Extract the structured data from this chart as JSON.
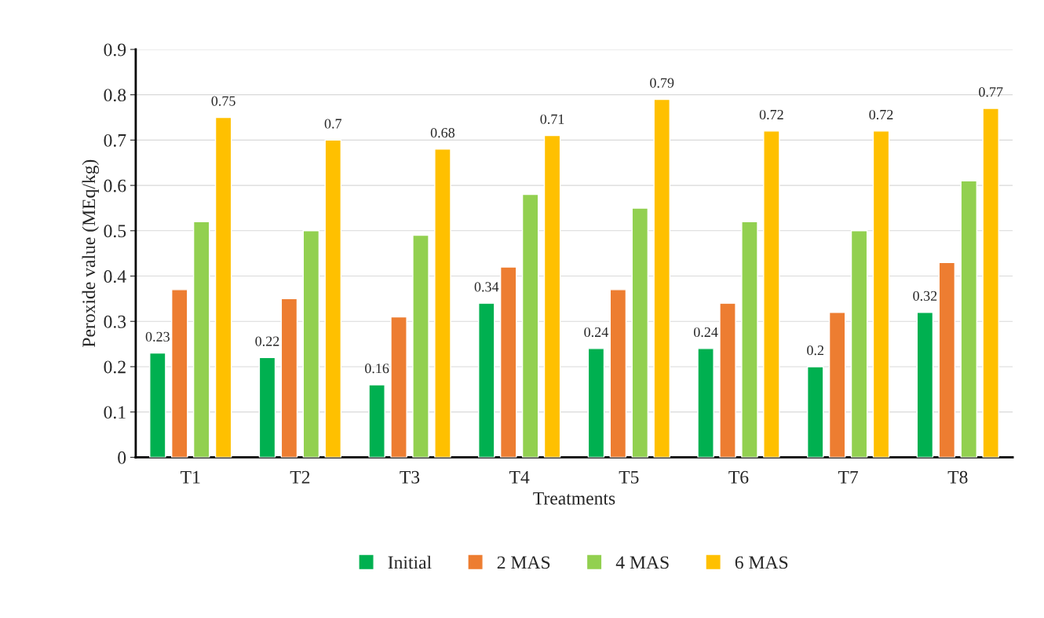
{
  "chart_data": {
    "type": "bar",
    "xlabel": "Treatments",
    "ylabel": "Peroxide value (MEq/kg)",
    "categories": [
      "T1",
      "T2",
      "T3",
      "T4",
      "T5",
      "T6",
      "T7",
      "T8"
    ],
    "series": [
      {
        "name": "Initial",
        "color": "#00b050",
        "values": [
          0.23,
          0.22,
          0.16,
          0.34,
          0.24,
          0.24,
          0.2,
          0.32
        ],
        "value_labels": [
          "0.23",
          "0.22",
          "0.16",
          "0.34",
          "0.24",
          "0.24",
          "0.2",
          "0.32"
        ]
      },
      {
        "name": "2 MAS",
        "color": "#ed7d31",
        "values": [
          0.37,
          0.35,
          0.31,
          0.42,
          0.37,
          0.34,
          0.32,
          0.43
        ]
      },
      {
        "name": "4 MAS",
        "color": "#92d050",
        "values": [
          0.52,
          0.5,
          0.49,
          0.58,
          0.55,
          0.52,
          0.5,
          0.61
        ]
      },
      {
        "name": "6 MAS",
        "color": "#ffc000",
        "values": [
          0.75,
          0.7,
          0.68,
          0.71,
          0.79,
          0.72,
          0.72,
          0.77
        ],
        "value_labels": [
          "0.75",
          "0.7",
          "0.68",
          "0.71",
          "0.79",
          "0.72",
          "0.72",
          "0.77"
        ]
      }
    ],
    "ylim": [
      0,
      0.9
    ],
    "yticks": [
      0,
      0.1,
      0.2,
      0.3,
      0.4,
      0.5,
      0.6,
      0.7,
      0.8,
      0.9
    ],
    "grid": "y",
    "legend": "bottom"
  }
}
